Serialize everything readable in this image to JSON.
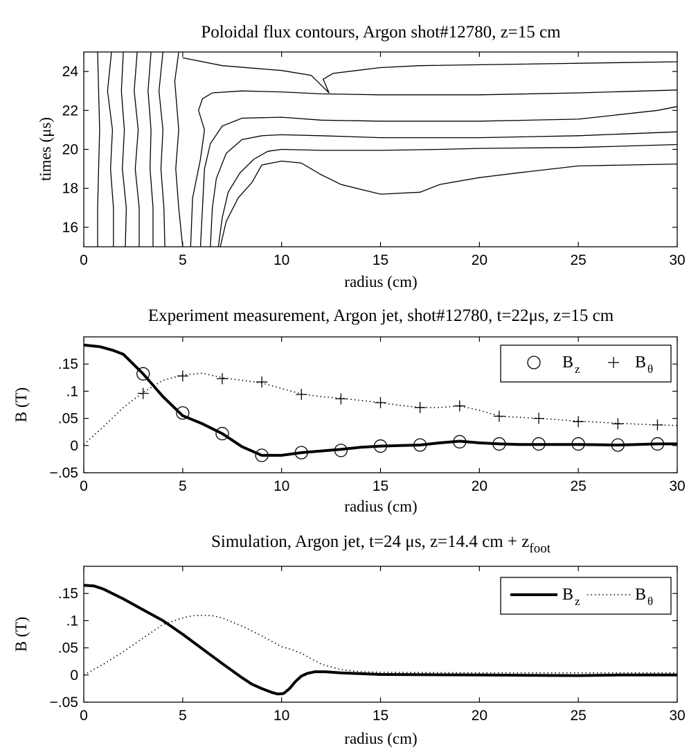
{
  "chart_data": [
    {
      "type": "contour",
      "title": "Poloidal flux contours, Argon shot#12780, z=15 cm",
      "xlabel": "radius (cm)",
      "ylabel": "times (μs)",
      "xlim": [
        0,
        30
      ],
      "ylim": [
        15,
        25
      ],
      "xticks": [
        0,
        5,
        10,
        15,
        20,
        25,
        30
      ],
      "yticks": [
        16,
        18,
        20,
        22,
        24
      ],
      "contours": [
        {
          "x": [
            0.7,
            0.75,
            0.8,
            0.75,
            0.7,
            0.7
          ],
          "y": [
            25,
            23,
            21,
            19,
            17,
            15
          ]
        },
        {
          "x": [
            1.4,
            1.2,
            1.45,
            1.35,
            1.5,
            1.5
          ],
          "y": [
            25,
            23,
            21,
            19,
            17,
            15
          ]
        },
        {
          "x": [
            2.0,
            1.9,
            2.05,
            1.95,
            2.15,
            2.1
          ],
          "y": [
            25,
            23,
            21,
            19,
            17,
            15
          ]
        },
        {
          "x": [
            2.7,
            2.55,
            2.75,
            2.6,
            2.8,
            2.8
          ],
          "y": [
            25,
            23,
            21,
            19,
            17,
            15
          ]
        },
        {
          "x": [
            3.4,
            3.25,
            3.4,
            3.35,
            3.5,
            3.5
          ],
          "y": [
            25,
            23,
            21,
            19,
            17,
            15
          ]
        },
        {
          "x": [
            4.0,
            3.8,
            4.0,
            3.9,
            4.05,
            4.1
          ],
          "y": [
            25,
            23,
            21,
            19,
            17,
            15
          ]
        },
        {
          "x": [
            4.8,
            4.6,
            4.8,
            4.65,
            4.8,
            5.0
          ],
          "y": [
            25,
            23.5,
            21,
            19,
            17,
            15
          ]
        },
        {
          "x": [
            5.0,
            7.0,
            10.0,
            11.5,
            12.0,
            12.4,
            12.1,
            12.6,
            15.0,
            17.0,
            30.0
          ],
          "y": [
            24.7,
            24.3,
            24.05,
            23.8,
            23.3,
            22.9,
            23.6,
            23.9,
            24.2,
            24.3,
            24.5
          ]
        },
        {
          "x": [
            5.4,
            5.5,
            5.9,
            6.1,
            5.8,
            6.0,
            6.5,
            8.0,
            10.0,
            12.0,
            15.0,
            20.0,
            25.0,
            30.0
          ],
          "y": [
            15.0,
            17.5,
            19.5,
            21.0,
            22.0,
            22.6,
            22.9,
            23.0,
            22.95,
            22.85,
            22.8,
            22.8,
            22.9,
            23.05
          ]
        },
        {
          "x": [
            5.9,
            6.0,
            6.1,
            6.4,
            7.0,
            8.0,
            10.0,
            12.0,
            15.0,
            20.0,
            25.0,
            29.0,
            30.0
          ],
          "y": [
            15.0,
            17.0,
            19.0,
            20.3,
            21.2,
            21.6,
            21.65,
            21.5,
            21.45,
            21.45,
            21.55,
            22.0,
            22.2
          ]
        },
        {
          "x": [
            6.4,
            6.5,
            6.7,
            7.2,
            8.0,
            9.0,
            10.0,
            12.0,
            15.0,
            20.0,
            25.0,
            30.0
          ],
          "y": [
            15.0,
            17.0,
            18.5,
            19.8,
            20.5,
            20.7,
            20.75,
            20.7,
            20.6,
            20.6,
            20.7,
            20.9
          ]
        },
        {
          "x": [
            6.8,
            7.0,
            7.3,
            7.9,
            8.6,
            9.3,
            10.0,
            12.0,
            15.0,
            18.0,
            20.0,
            25.0,
            30.0
          ],
          "y": [
            15.0,
            16.5,
            17.8,
            18.8,
            19.5,
            19.9,
            20.0,
            19.95,
            19.95,
            20.0,
            20.05,
            20.1,
            20.25
          ]
        },
        {
          "x": [
            6.9,
            7.2,
            7.8,
            8.5,
            9.0,
            10.0,
            11.0,
            12.0,
            13.0,
            14.0,
            15.0,
            17.0,
            18.0,
            20.0,
            22.0,
            25.0,
            30.0
          ],
          "y": [
            15.0,
            16.3,
            17.5,
            18.3,
            19.2,
            19.4,
            19.3,
            18.7,
            18.2,
            17.95,
            17.7,
            17.8,
            18.2,
            18.55,
            18.8,
            19.15,
            19.25
          ]
        }
      ]
    },
    {
      "type": "line",
      "title": "Experiment measurement, Argon jet, shot#12780, t=22μs, z=15 cm",
      "xlabel": "radius (cm)",
      "ylabel": "B (T)",
      "xlim": [
        0,
        30
      ],
      "ylim": [
        -0.05,
        0.2
      ],
      "xticks": [
        0,
        5,
        10,
        15,
        20,
        25,
        30
      ],
      "yticks": [
        -0.05,
        0,
        0.05,
        0.1,
        0.15
      ],
      "legend": {
        "position": "top-right",
        "entries": [
          "B_z",
          "B_θ"
        ]
      },
      "series": [
        {
          "name": "B_z fit",
          "style": "solid-thick",
          "x": [
            0,
            0.8,
            1.5,
            2.0,
            3.0,
            4.0,
            5.0,
            6.0,
            7.0,
            8.0,
            9.0,
            10.0,
            11.0,
            12.0,
            13.0,
            14.0,
            15.0,
            16.0,
            17.0,
            18.0,
            19.0,
            20.0,
            21.0,
            22.0,
            23.0,
            25.0,
            27.0,
            28.0,
            29.0,
            30.0
          ],
          "y": [
            0.185,
            0.182,
            0.175,
            0.168,
            0.132,
            0.09,
            0.055,
            0.04,
            0.022,
            -0.002,
            -0.018,
            -0.018,
            -0.013,
            -0.01,
            -0.007,
            -0.003,
            -0.001,
            0.0,
            0.001,
            0.005,
            0.008,
            0.005,
            0.003,
            0.002,
            0.002,
            0.002,
            0.001,
            0.002,
            0.003,
            0.003
          ]
        },
        {
          "name": "B_z",
          "style": "open-circle",
          "x": [
            3,
            5,
            7,
            9,
            11,
            13,
            15,
            17,
            19,
            21,
            23,
            25,
            27,
            29
          ],
          "y": [
            0.132,
            0.06,
            0.022,
            -0.018,
            -0.013,
            -0.009,
            -0.001,
            0.001,
            0.007,
            0.003,
            0.003,
            0.003,
            0.001,
            0.003
          ]
        },
        {
          "name": "B_θ fit",
          "style": "dotted",
          "x": [
            0,
            1.0,
            2.0,
            3.0,
            4.0,
            5.0,
            6.0,
            7.0,
            8.0,
            9.0,
            10.0,
            11.0,
            12.0,
            13.0,
            14.0,
            15.0,
            16.0,
            17.0,
            18.0,
            19.0,
            20.0,
            21.0,
            22.0,
            23.0,
            25.0,
            27.0,
            29.0,
            30.0
          ],
          "y": [
            0.002,
            0.035,
            0.07,
            0.098,
            0.12,
            0.13,
            0.133,
            0.125,
            0.12,
            0.115,
            0.105,
            0.095,
            0.09,
            0.087,
            0.083,
            0.079,
            0.074,
            0.07,
            0.07,
            0.073,
            0.065,
            0.054,
            0.052,
            0.05,
            0.045,
            0.041,
            0.038,
            0.037
          ]
        },
        {
          "name": "B_θ",
          "style": "plus",
          "x": [
            3,
            5,
            7,
            9,
            11,
            13,
            15,
            17,
            19,
            21,
            23,
            25,
            27,
            29
          ],
          "y": [
            0.096,
            0.128,
            0.123,
            0.117,
            0.094,
            0.086,
            0.079,
            0.07,
            0.073,
            0.054,
            0.05,
            0.044,
            0.04,
            0.038
          ]
        }
      ]
    },
    {
      "type": "line",
      "title": "Simulation, Argon jet, t=24 μs, z=14.4 cm + z",
      "title_subscript": "foot",
      "xlabel": "radius (cm)",
      "ylabel": "B (T)",
      "xlim": [
        0,
        30
      ],
      "ylim": [
        -0.05,
        0.2
      ],
      "xticks": [
        0,
        5,
        10,
        15,
        20,
        25,
        30
      ],
      "yticks": [
        -0.05,
        0,
        0.05,
        0.1,
        0.15
      ],
      "legend": {
        "position": "top-right",
        "entries": [
          "B_z",
          "B_θ"
        ]
      },
      "series": [
        {
          "name": "B_z",
          "style": "solid-thick",
          "x": [
            0,
            0.5,
            1.0,
            2.0,
            3.0,
            4.0,
            5.0,
            6.0,
            7.0,
            8.0,
            8.5,
            9.0,
            9.5,
            9.8,
            10.1,
            10.4,
            10.7,
            11.0,
            11.3,
            11.7,
            12.2,
            13.0,
            15.0,
            20.0,
            25.0,
            27.0,
            30.0
          ],
          "y": [
            0.165,
            0.164,
            0.158,
            0.14,
            0.12,
            0.1,
            0.075,
            0.048,
            0.021,
            -0.005,
            -0.017,
            -0.025,
            -0.032,
            -0.035,
            -0.034,
            -0.025,
            -0.012,
            -0.002,
            0.003,
            0.006,
            0.006,
            0.004,
            0.001,
            0.0,
            -0.001,
            0.0,
            0.0
          ]
        },
        {
          "name": "B_θ",
          "style": "dotted",
          "x": [
            0,
            1.0,
            2.0,
            3.0,
            4.0,
            5.0,
            5.5,
            6.0,
            6.5,
            7.0,
            8.0,
            9.0,
            9.5,
            10.0,
            10.5,
            11.0,
            11.5,
            12.0,
            13.0,
            14.0,
            15.0,
            20.0,
            25.0,
            30.0
          ],
          "y": [
            0.0,
            0.02,
            0.043,
            0.068,
            0.093,
            0.105,
            0.109,
            0.11,
            0.109,
            0.105,
            0.09,
            0.072,
            0.062,
            0.052,
            0.047,
            0.04,
            0.03,
            0.02,
            0.01,
            0.006,
            0.005,
            0.004,
            0.004,
            0.004
          ]
        }
      ]
    }
  ]
}
